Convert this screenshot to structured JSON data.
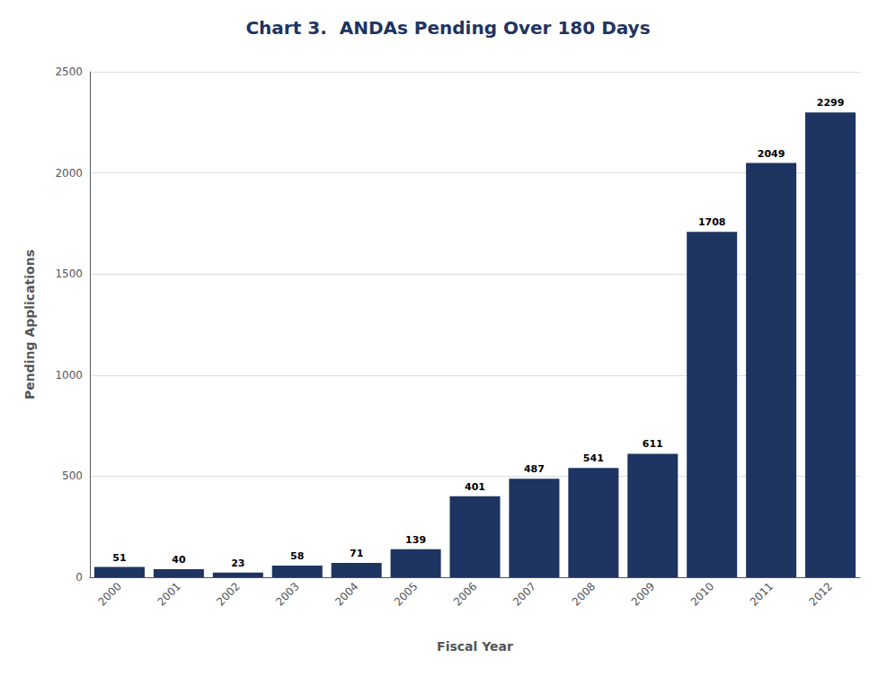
{
  "chart_data": {
    "type": "bar",
    "title": "Chart 3.  ANDAs Pending Over 180 Days",
    "xlabel": "Fiscal Year",
    "ylabel": "Pending Applications",
    "categories": [
      "2000",
      "2001",
      "2002",
      "2003",
      "2004",
      "2005",
      "2006",
      "2007",
      "2008",
      "2009",
      "2010",
      "2011",
      "2012"
    ],
    "values": [
      51,
      40,
      23,
      58,
      71,
      139,
      401,
      487,
      541,
      611,
      1708,
      2049,
      2299
    ],
    "color": "#1e3461",
    "ylim": [
      0,
      2500
    ],
    "yticks": [
      0,
      500,
      1000,
      1500,
      2000,
      2500
    ],
    "grid": true,
    "data_labels": true
  }
}
